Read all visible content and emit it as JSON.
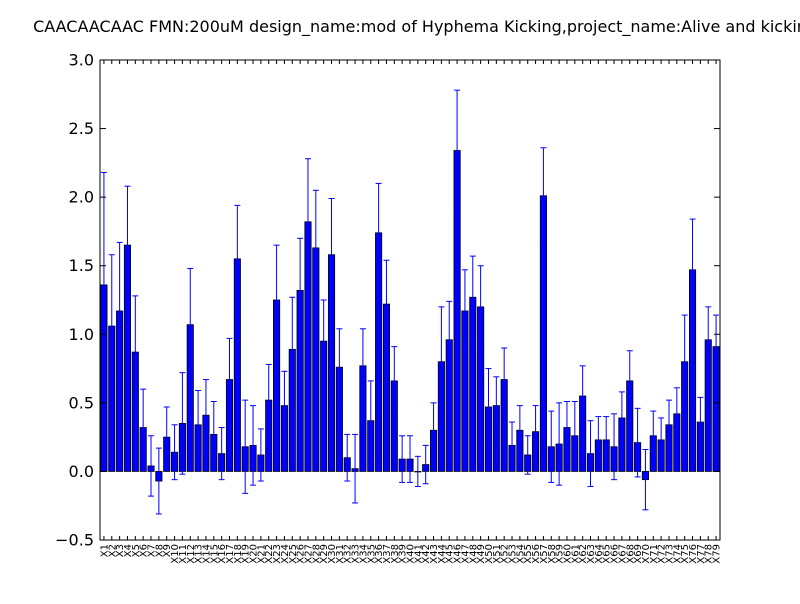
{
  "chart_data": {
    "type": "bar",
    "title": "CAACAACAAC  FMN:200uM  design_name:mod of Hyphema Kicking,project_name:Alive and kickin",
    "xlabel": "",
    "ylabel": "",
    "ylim": [
      -0.5,
      3.0
    ],
    "yticks": [
      -0.5,
      0.0,
      0.5,
      1.0,
      1.5,
      2.0,
      2.5,
      3.0
    ],
    "ytick_labels": [
      "−0.5",
      "0.0",
      "0.5",
      "1.0",
      "1.5",
      "2.0",
      "2.5",
      "3.0"
    ],
    "grid": false,
    "bar_color": "#0000ff",
    "error_color": "#0000ff",
    "categories": [
      "X1",
      "X2",
      "X3",
      "X4",
      "X5",
      "X6",
      "X7",
      "X8",
      "X9",
      "X10",
      "X11",
      "X12",
      "X13",
      "X14",
      "X15",
      "X16",
      "X17",
      "X18",
      "X19",
      "X20",
      "X21",
      "X22",
      "X23",
      "X24",
      "X25",
      "X26",
      "X27",
      "X28",
      "X29",
      "X30",
      "X31",
      "X32",
      "X33",
      "X34",
      "X35",
      "X36",
      "X37",
      "X38",
      "X39",
      "X40",
      "X41",
      "X42",
      "X43",
      "X44",
      "X45",
      "X46",
      "X47",
      "X48",
      "X49",
      "X50",
      "X51",
      "X52",
      "X53",
      "X54",
      "X55",
      "X56",
      "X57",
      "X58",
      "X59",
      "X60",
      "X61",
      "X62",
      "X63",
      "X64",
      "X65",
      "X66",
      "X67",
      "X68",
      "X69",
      "X70",
      "X71",
      "X72",
      "X73",
      "X74",
      "X75",
      "X76",
      "X77",
      "X78",
      "X79"
    ],
    "values": [
      1.36,
      1.06,
      1.17,
      1.65,
      0.87,
      0.32,
      0.04,
      -0.07,
      0.25,
      0.14,
      0.35,
      1.07,
      0.34,
      0.41,
      0.27,
      0.13,
      0.67,
      1.55,
      0.18,
      0.19,
      0.12,
      0.52,
      1.25,
      0.48,
      0.89,
      1.32,
      1.82,
      1.63,
      0.95,
      1.58,
      0.76,
      0.1,
      0.02,
      0.77,
      0.37,
      1.74,
      1.22,
      0.66,
      0.09,
      0.09,
      0.0,
      0.05,
      0.3,
      0.8,
      0.96,
      2.34,
      1.17,
      1.27,
      1.2,
      0.47,
      0.48,
      0.67,
      0.19,
      0.3,
      0.12,
      0.29,
      2.01,
      0.18,
      0.2,
      0.32,
      0.26,
      0.55,
      0.13,
      0.23,
      0.23,
      0.18,
      0.39,
      0.66,
      0.21,
      -0.06,
      0.26,
      0.23,
      0.34,
      0.42,
      0.8,
      1.47,
      0.36,
      0.96,
      0.91
    ],
    "errors": [
      0.82,
      0.52,
      0.5,
      0.43,
      0.41,
      0.28,
      0.22,
      0.24,
      0.22,
      0.2,
      0.37,
      0.41,
      0.25,
      0.26,
      0.24,
      0.19,
      0.3,
      0.39,
      0.34,
      0.29,
      0.19,
      0.26,
      0.4,
      0.25,
      0.38,
      0.38,
      0.46,
      0.42,
      0.3,
      0.41,
      0.28,
      0.17,
      0.25,
      0.27,
      0.29,
      0.36,
      0.32,
      0.25,
      0.17,
      0.17,
      0.11,
      0.14,
      0.2,
      0.4,
      0.28,
      0.44,
      0.3,
      0.3,
      0.3,
      0.28,
      0.21,
      0.23,
      0.17,
      0.18,
      0.14,
      0.19,
      0.35,
      0.26,
      0.3,
      0.19,
      0.25,
      0.22,
      0.24,
      0.17,
      0.17,
      0.24,
      0.19,
      0.22,
      0.25,
      0.22,
      0.18,
      0.16,
      0.18,
      0.19,
      0.34,
      0.37,
      0.18,
      0.24,
      0.23
    ]
  }
}
